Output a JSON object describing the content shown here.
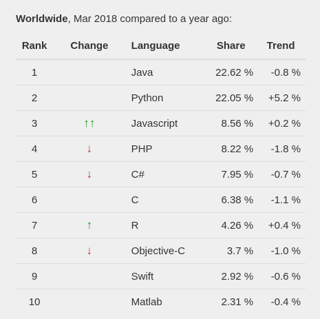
{
  "caption": {
    "scope": "Worldwide",
    "rest": ", Mar 2018 compared to a year ago:"
  },
  "headers": {
    "rank": "Rank",
    "change": "Change",
    "language": "Language",
    "share": "Share",
    "trend": "Trend"
  },
  "colors": {
    "up": "#1a9a1a",
    "down": "#c0392b",
    "background": "#efefef",
    "divider": "#dddddd"
  },
  "rows": [
    {
      "rank": "1",
      "change": "",
      "change_icon": "none",
      "language": "Java",
      "share": "22.62 %",
      "trend": "-0.8 %"
    },
    {
      "rank": "2",
      "change": "",
      "change_icon": "none",
      "language": "Python",
      "share": "22.05 %",
      "trend": "+5.2 %"
    },
    {
      "rank": "3",
      "change": "↑↑",
      "change_icon": "double-up-arrow-icon",
      "language": "Javascript",
      "share": "8.56 %",
      "trend": "+0.2 %"
    },
    {
      "rank": "4",
      "change": "↓",
      "change_icon": "down-arrow-icon",
      "language": "PHP",
      "share": "8.22 %",
      "trend": "-1.8 %"
    },
    {
      "rank": "5",
      "change": "↓",
      "change_icon": "down-arrow-icon",
      "language": "C#",
      "share": "7.95 %",
      "trend": "-0.7 %"
    },
    {
      "rank": "6",
      "change": "",
      "change_icon": "none",
      "language": "C",
      "share": "6.38 %",
      "trend": "-1.1 %"
    },
    {
      "rank": "7",
      "change": "↑",
      "change_icon": "up-arrow-icon",
      "language": "R",
      "share": "4.26 %",
      "trend": "+0.4 %"
    },
    {
      "rank": "8",
      "change": "↓",
      "change_icon": "down-arrow-icon",
      "language": "Objective-C",
      "share": "3.7 %",
      "trend": "-1.0 %"
    },
    {
      "rank": "9",
      "change": "",
      "change_icon": "none",
      "language": "Swift",
      "share": "2.92 %",
      "trend": "-0.6 %"
    },
    {
      "rank": "10",
      "change": "",
      "change_icon": "none",
      "language": "Matlab",
      "share": "2.31 %",
      "trend": "-0.4 %"
    }
  ]
}
